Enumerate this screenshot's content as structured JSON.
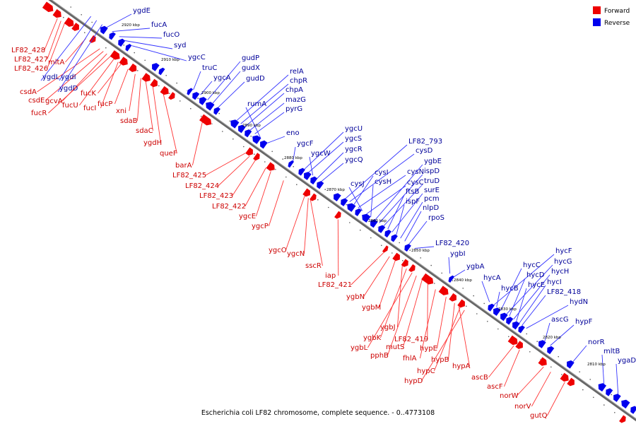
{
  "caption": "Escherichia coli LF82 chromosome, complete sequence. - 0..4773108",
  "legend": {
    "forward_label": "Forward",
    "reverse_label": "Reverse",
    "forward_color": "#ee0000",
    "reverse_color": "#0000ee"
  },
  "colors": {
    "forward_line": "#ff3333",
    "reverse_line": "#3333ff",
    "backbone": "#666666"
  },
  "ticks": [
    "2920 kbp",
    "2910 kbp",
    "2900 kbp",
    "2890 kbp",
    "2880 kbp",
    "2870 kbp",
    "2860 kbp",
    "2850 kbp",
    "2840 kbp",
    "2830 kbp",
    "2820 kbp",
    "2810 kbp"
  ],
  "forward_genes": [
    "LF82_428",
    "LF82_427",
    "LF82_426",
    "mltA",
    "csdA",
    "csdE",
    "fucR",
    "gcvA",
    "fucU",
    "fucI",
    "fucK",
    "fucP",
    "xni",
    "sdaB",
    "sdaC",
    "ygdH",
    "queF",
    "barA",
    "LF82_425",
    "LF82_424",
    "LF82_423",
    "LF82_422",
    "ygcE",
    "ygcP",
    "ygcO",
    "ygcN",
    "sscR",
    "iap",
    "LF82_421",
    "ygbN",
    "ygbM",
    "ygbJ",
    "ygbK",
    "ygbL",
    "pphB",
    "mutS",
    "LF82_419",
    "fhlA",
    "hypE",
    "hypB",
    "hypC",
    "hypD",
    "hypA",
    "ascB",
    "ascF",
    "norW",
    "norV",
    "gutQ"
  ],
  "reverse_genes": [
    "ygdE",
    "fucA",
    "fucO",
    "syd",
    "ygcC",
    "truC",
    "ygcA",
    "gudP",
    "gudX",
    "gudD",
    "relA",
    "chpR",
    "chpA",
    "mazG",
    "pyrG",
    "rumA",
    "eno",
    "ygcF",
    "ygcU",
    "ygcS",
    "ygcW",
    "ygcR",
    "ygcQ",
    "LF82_793",
    "cysD",
    "cysI",
    "cysN",
    "cysJ",
    "cysC",
    "cysH",
    "ygbE",
    "ispD",
    "truD",
    "ftsB",
    "surE",
    "ispF",
    "pcm",
    "nlpD",
    "rpoS",
    "LF82_420",
    "ygbI",
    "ygbA",
    "hycF",
    "hycA",
    "hycC",
    "hycG",
    "hycD",
    "hycB",
    "hycH",
    "hycE",
    "hycI",
    "LF82_418",
    "hydN",
    "ascG",
    "hypF",
    "norR",
    "mltB",
    "ygaD",
    "ygdI",
    "ygdL",
    "ygdD"
  ]
}
